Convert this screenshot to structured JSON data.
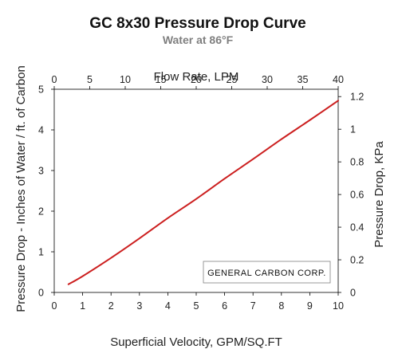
{
  "chart_data": {
    "type": "line",
    "title": "GC 8x30 Pressure Drop Curve",
    "subtitle": "Water at 86°F",
    "xlabel": "Superficial Velocity, GPM/SQ.FT",
    "ylabel": "Pressure Drop - Inches of Water / ft. of Carbon",
    "x2label": "Flow Rate, LPM",
    "y2label": "Pressure Drop, KPa",
    "xlim": [
      0,
      10
    ],
    "ylim": [
      0,
      5
    ],
    "x2lim": [
      0,
      40
    ],
    "y2lim": [
      0,
      1.245
    ],
    "xticks": [
      "0",
      "1",
      "2",
      "3",
      "4",
      "5",
      "6",
      "7",
      "8",
      "9",
      "10"
    ],
    "yticks": [
      "0",
      "1",
      "2",
      "3",
      "4",
      "5"
    ],
    "x2ticks": [
      "0",
      "5",
      "10",
      "15",
      "20",
      "25",
      "30",
      "35",
      "40"
    ],
    "y2ticks": [
      "0",
      "0.2",
      "0.4",
      "0.6",
      "0.8",
      "1",
      "1.2"
    ],
    "grid": false,
    "annotation": "GENERAL  CARBON CORP.",
    "line_color": "#cc1f1f",
    "series": [
      {
        "x": [
          0.5,
          1,
          2,
          3,
          4,
          5,
          6,
          7,
          8,
          9,
          10
        ],
        "y": [
          0.2,
          0.4,
          0.85,
          1.33,
          1.83,
          2.3,
          2.8,
          3.28,
          3.77,
          4.24,
          4.72
        ]
      }
    ]
  }
}
